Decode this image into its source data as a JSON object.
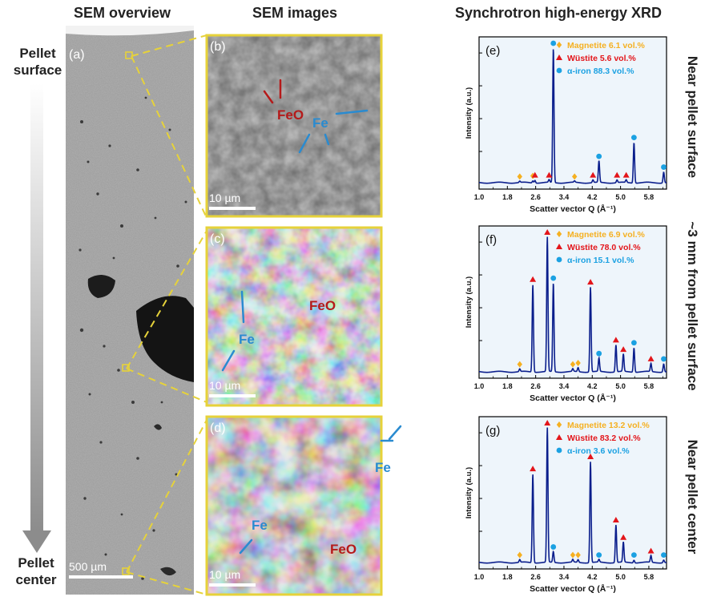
{
  "headers": {
    "sem_overview": "SEM overview",
    "sem_images": "SEM images",
    "xrd": "Synchrotron high-energy XRD"
  },
  "side_labels": {
    "pellet_surface": [
      "Pellet",
      "surface"
    ],
    "pellet_center": [
      "Pellet",
      "center"
    ]
  },
  "panels": {
    "a": {
      "letter": "(a)",
      "scalebar": "500 µm"
    },
    "b": {
      "letter": "(b)",
      "scalebar": "10 µm",
      "labels": [
        "FeO",
        "Fe"
      ]
    },
    "c": {
      "letter": "(c)",
      "scalebar": "10 µm",
      "labels": [
        "FeO",
        "Fe"
      ]
    },
    "d": {
      "letter": "(d)",
      "scalebar": "10 µm",
      "labels": [
        "Fe",
        "Fe",
        "FeO"
      ]
    }
  },
  "colors": {
    "magnetite": "#f5b021",
    "wustite": "#e3151a",
    "alpha_iron": "#1ba1e2",
    "line": "#0a1e8c",
    "sem_label_red": "#b51a1a",
    "sem_label_blue": "#2a8bd0",
    "frame_yellow": "#e6d23a"
  },
  "chart_data": [
    {
      "panel": "(e)",
      "type": "line",
      "ylabel": "Intensity (a.u.)",
      "xlabel": "Scatter vector Q (Å⁻¹)",
      "xlim": [
        1.0,
        6.3
      ],
      "xticks": [
        "1.0",
        "1.8",
        "2.6",
        "3.4",
        "4.2",
        "5.0",
        "5.8"
      ],
      "position_label": "Near pellet surface",
      "legend": [
        {
          "marker": "diamond",
          "text": "Magnetite 6.1 vol.%",
          "color": "#f5b021"
        },
        {
          "marker": "triangle",
          "text": "Wüstite 5.6 vol.%",
          "color": "#e3151a"
        },
        {
          "marker": "circle",
          "text": "α-iron 88.3 vol.%",
          "color": "#1ba1e2"
        }
      ],
      "peaks": [
        {
          "q": 2.15,
          "h": 0.01,
          "phase": "magnetite"
        },
        {
          "q": 2.52,
          "h": 0.015,
          "phase": "magnetite"
        },
        {
          "q": 2.58,
          "h": 0.02,
          "phase": "wustite"
        },
        {
          "q": 2.98,
          "h": 0.02,
          "phase": "wustite"
        },
        {
          "q": 3.1,
          "h": 1.0,
          "phase": "alpha_iron"
        },
        {
          "q": 3.7,
          "h": 0.01,
          "phase": "magnetite"
        },
        {
          "q": 4.22,
          "h": 0.02,
          "phase": "wustite"
        },
        {
          "q": 4.39,
          "h": 0.16,
          "phase": "alpha_iron"
        },
        {
          "q": 4.9,
          "h": 0.02,
          "phase": "wustite"
        },
        {
          "q": 5.16,
          "h": 0.02,
          "phase": "wustite"
        },
        {
          "q": 5.38,
          "h": 0.3,
          "phase": "alpha_iron"
        },
        {
          "q": 6.22,
          "h": 0.08,
          "phase": "alpha_iron"
        }
      ]
    },
    {
      "panel": "(f)",
      "type": "line",
      "ylabel": "Intensity (a.u.)",
      "xlabel": "Scatter vector Q (Å⁻¹)",
      "xlim": [
        1.0,
        6.3
      ],
      "xticks": [
        "1.0",
        "1.8",
        "2.6",
        "3.4",
        "4.2",
        "5.0",
        "5.8"
      ],
      "position_label": "~3 mm from pellet surface",
      "legend": [
        {
          "marker": "diamond",
          "text": "Magnetite 6.9 vol.%",
          "color": "#f5b021"
        },
        {
          "marker": "triangle",
          "text": "Wüstite 78.0 vol.%",
          "color": "#e3151a"
        },
        {
          "marker": "circle",
          "text": "α-iron 15.1 vol.%",
          "color": "#1ba1e2"
        }
      ],
      "peaks": [
        {
          "q": 2.15,
          "h": 0.02,
          "phase": "magnetite"
        },
        {
          "q": 2.52,
          "h": 0.65,
          "phase": "wustite"
        },
        {
          "q": 2.93,
          "h": 1.0,
          "phase": "wustite"
        },
        {
          "q": 3.1,
          "h": 0.66,
          "phase": "alpha_iron"
        },
        {
          "q": 3.65,
          "h": 0.02,
          "phase": "magnetite"
        },
        {
          "q": 3.8,
          "h": 0.03,
          "phase": "magnetite"
        },
        {
          "q": 4.15,
          "h": 0.63,
          "phase": "wustite"
        },
        {
          "q": 4.39,
          "h": 0.1,
          "phase": "alpha_iron"
        },
        {
          "q": 4.87,
          "h": 0.2,
          "phase": "wustite"
        },
        {
          "q": 5.08,
          "h": 0.13,
          "phase": "wustite"
        },
        {
          "q": 5.38,
          "h": 0.18,
          "phase": "alpha_iron"
        },
        {
          "q": 5.86,
          "h": 0.06,
          "phase": "wustite"
        },
        {
          "q": 6.22,
          "h": 0.06,
          "phase": "alpha_iron"
        }
      ]
    },
    {
      "panel": "(g)",
      "type": "line",
      "ylabel": "Intensity (a.u.)",
      "xlabel": "Scatter vector Q (Å⁻¹)",
      "xlim": [
        1.0,
        6.3
      ],
      "xticks": [
        "1.0",
        "1.8",
        "2.6",
        "3.4",
        "4.2",
        "5.0",
        "5.8"
      ],
      "position_label": "Near pellet center",
      "legend": [
        {
          "marker": "diamond",
          "text": "Magnetite 13.2 vol.%",
          "color": "#f5b021"
        },
        {
          "marker": "triangle",
          "text": "Wüstite 83.2 vol.%",
          "color": "#e3151a"
        },
        {
          "marker": "circle",
          "text": "α-iron 3.6 vol.%",
          "color": "#1ba1e2"
        }
      ],
      "peaks": [
        {
          "q": 2.15,
          "h": 0.02,
          "phase": "magnetite"
        },
        {
          "q": 2.52,
          "h": 0.66,
          "phase": "wustite"
        },
        {
          "q": 2.93,
          "h": 1.0,
          "phase": "wustite"
        },
        {
          "q": 3.1,
          "h": 0.08,
          "phase": "alpha_iron"
        },
        {
          "q": 3.65,
          "h": 0.02,
          "phase": "magnetite"
        },
        {
          "q": 3.8,
          "h": 0.02,
          "phase": "magnetite"
        },
        {
          "q": 4.15,
          "h": 0.75,
          "phase": "wustite"
        },
        {
          "q": 4.39,
          "h": 0.02,
          "phase": "alpha_iron"
        },
        {
          "q": 4.87,
          "h": 0.28,
          "phase": "wustite"
        },
        {
          "q": 5.08,
          "h": 0.15,
          "phase": "wustite"
        },
        {
          "q": 5.38,
          "h": 0.02,
          "phase": "alpha_iron"
        },
        {
          "q": 5.86,
          "h": 0.05,
          "phase": "wustite"
        },
        {
          "q": 6.22,
          "h": 0.02,
          "phase": "alpha_iron"
        }
      ]
    }
  ]
}
